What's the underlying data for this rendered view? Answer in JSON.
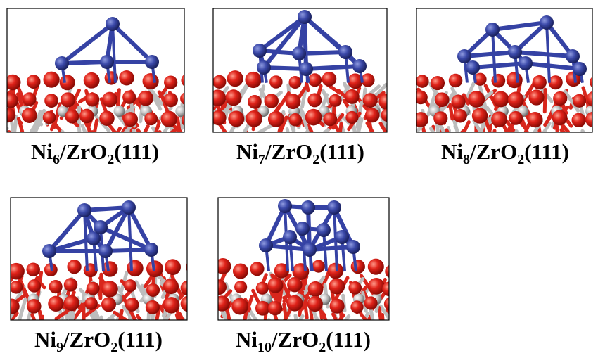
{
  "panels": [
    {
      "label": [
        "Ni",
        "6",
        "/ZrO",
        "2",
        "(111)"
      ]
    },
    {
      "label": [
        "Ni",
        "7",
        "/ZrO",
        "2",
        "(111)"
      ]
    },
    {
      "label": [
        "Ni",
        "8",
        "/ZrO",
        "2",
        "(111)"
      ]
    },
    {
      "label": [
        "Ni",
        "9",
        "/ZrO",
        "2",
        "(111)"
      ]
    },
    {
      "label": [
        "Ni",
        "10",
        "/ZrO",
        "2",
        "(111)"
      ]
    }
  ]
}
